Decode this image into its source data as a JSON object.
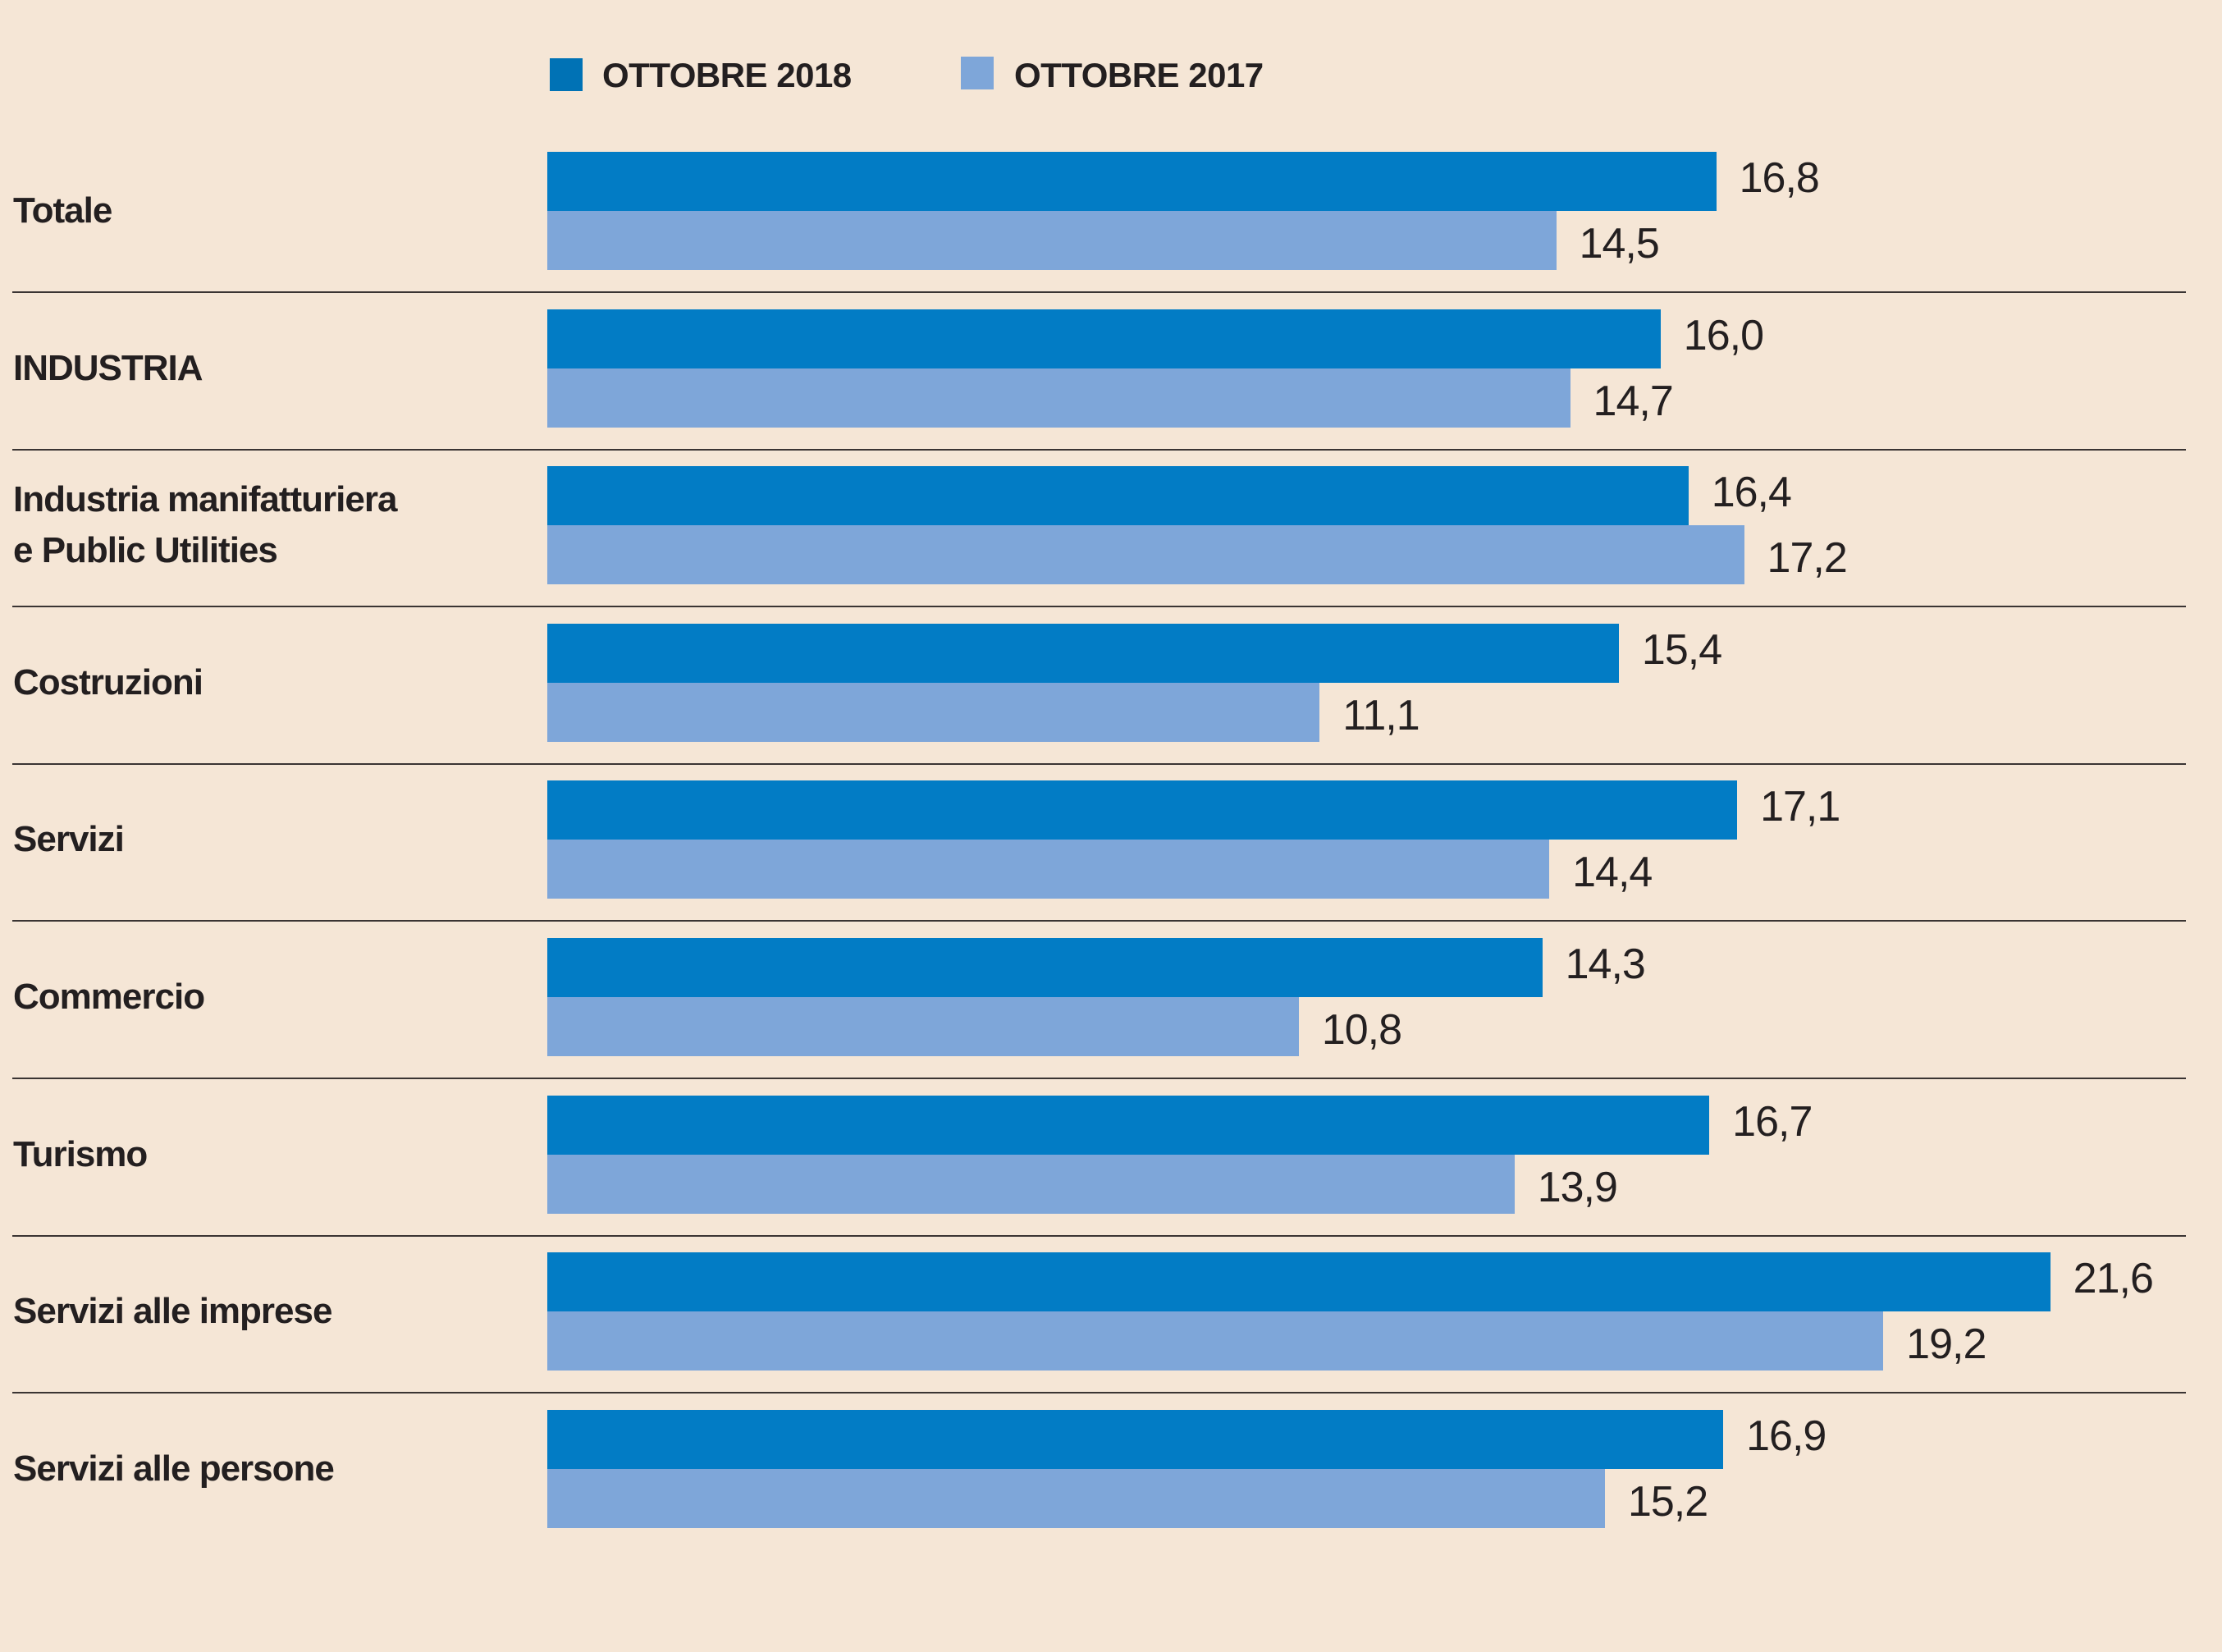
{
  "chart_data": {
    "type": "bar",
    "orientation": "horizontal",
    "title": "",
    "xlabel": "",
    "ylabel": "",
    "xlim": [
      0,
      22
    ],
    "grid": false,
    "legend_placement": "top",
    "decimal_separator": ",",
    "categories": [
      "Totale",
      "INDUSTRIA",
      "Industria manifatturiera\ne Public Utilities",
      "Costruzioni",
      "Servizi",
      "Commercio",
      "Turismo",
      "Servizi alle imprese",
      "Servizi alle persone"
    ],
    "series": [
      {
        "name": "OTTOBRE 2018",
        "color": "#027CC5",
        "values": [
          16.8,
          16.0,
          16.4,
          15.4,
          17.1,
          14.3,
          16.7,
          21.6,
          16.9
        ],
        "labels": [
          "16,8",
          "16,0",
          "16,4",
          "15,4",
          "17,1",
          "14,3",
          "16,7",
          "21,6",
          "16,9"
        ]
      },
      {
        "name": "OTTOBRE 2017",
        "color": "#7EA6D9",
        "values": [
          14.5,
          14.7,
          17.2,
          11.1,
          14.4,
          10.8,
          13.9,
          19.2,
          15.2
        ],
        "labels": [
          "14,5",
          "14,7",
          "17,2",
          "11,1",
          "14,4",
          "10,8",
          "13,9",
          "19,2",
          "15,2"
        ]
      }
    ]
  },
  "legend": [
    {
      "label": "OTTOBRE 2018",
      "color": "#0072B5"
    },
    {
      "label": "OTTOBRE 2017",
      "color": "#7EA6D9"
    }
  ],
  "colors": {
    "background": "#F5E6D6",
    "divider": "#3A3433",
    "text": "#231F20"
  }
}
